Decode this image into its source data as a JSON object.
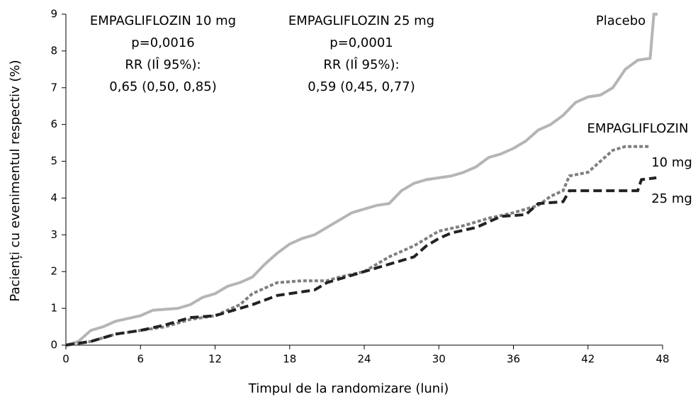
{
  "chart_data": {
    "type": "line",
    "xlabel": "Timpul de la randomizare (luni)",
    "ylabel": "Pacienți cu evenimentul respectiv (%)",
    "annotations": [
      [
        "EMPAGLIFLOZIN 10 mg",
        "p=0,0016",
        "RR (IÎ 95%):",
        "0,65 (0,50, 0,85)"
      ],
      [
        "EMPAGLIFLOZIN 25 mg",
        "p=0,0001",
        "RR (IÎ 95%):",
        "0,59 (0,45, 0,77)"
      ],
      "EMPAGLIFLOZIN"
    ],
    "xlim": [
      0,
      48
    ],
    "xticks": [
      0,
      6,
      12,
      18,
      24,
      30,
      36,
      42,
      48
    ],
    "ylim": [
      0,
      9
    ],
    "yticks": [
      0,
      1,
      2,
      3,
      4,
      5,
      6,
      7,
      8,
      9
    ],
    "series": [
      {
        "name": "Placebo",
        "color": "#b5b5b5",
        "style": "solid",
        "x": [
          0,
          1,
          2,
          3,
          4,
          6,
          7,
          9,
          10,
          11,
          12,
          13,
          14,
          15,
          16,
          17,
          18,
          19,
          20,
          21,
          22,
          23,
          24,
          25,
          26,
          27,
          28,
          29,
          30,
          31,
          32,
          33,
          34,
          35,
          36,
          37,
          38,
          39,
          40,
          41,
          42,
          43,
          44,
          45,
          46,
          47,
          47.3,
          47.6
        ],
        "values": [
          0,
          0.1,
          0.4,
          0.5,
          0.65,
          0.8,
          0.95,
          1.0,
          1.1,
          1.3,
          1.4,
          1.6,
          1.7,
          1.85,
          2.2,
          2.5,
          2.75,
          2.9,
          3.0,
          3.2,
          3.4,
          3.6,
          3.7,
          3.8,
          3.85,
          4.2,
          4.4,
          4.5,
          4.55,
          4.6,
          4.7,
          4.85,
          5.1,
          5.2,
          5.35,
          5.55,
          5.85,
          6.0,
          6.25,
          6.6,
          6.75,
          6.8,
          7.0,
          7.5,
          7.75,
          7.8,
          9,
          9
        ]
      },
      {
        "name": "10 mg",
        "color": "#7f7f7f",
        "style": "dotted",
        "x": [
          0,
          2,
          4,
          6,
          8,
          10,
          12,
          14,
          15,
          16,
          17,
          19,
          21,
          22,
          24,
          25,
          26,
          28,
          29,
          30,
          32,
          34,
          36,
          38,
          39,
          40,
          40.5,
          42,
          43,
          44,
          45,
          47
        ],
        "values": [
          0,
          0.1,
          0.3,
          0.4,
          0.5,
          0.7,
          0.8,
          1.1,
          1.4,
          1.55,
          1.7,
          1.75,
          1.75,
          1.85,
          2.0,
          2.2,
          2.4,
          2.7,
          2.9,
          3.1,
          3.25,
          3.45,
          3.6,
          3.8,
          4.05,
          4.2,
          4.6,
          4.7,
          5.0,
          5.3,
          5.4,
          5.4
        ]
      },
      {
        "name": "25 mg",
        "color": "#222222",
        "style": "dashed",
        "x": [
          0,
          2,
          4,
          6,
          8,
          10,
          12,
          13,
          15,
          17,
          19,
          20,
          21,
          22,
          24,
          26,
          28,
          29,
          30,
          31,
          33,
          35,
          37,
          38,
          40,
          40.5,
          46,
          46.3,
          47.5
        ],
        "values": [
          0,
          0.1,
          0.3,
          0.4,
          0.55,
          0.75,
          0.8,
          0.9,
          1.1,
          1.35,
          1.45,
          1.5,
          1.7,
          1.8,
          2.0,
          2.2,
          2.4,
          2.7,
          2.9,
          3.05,
          3.2,
          3.5,
          3.55,
          3.85,
          3.9,
          4.2,
          4.2,
          4.5,
          4.55
        ]
      }
    ]
  }
}
